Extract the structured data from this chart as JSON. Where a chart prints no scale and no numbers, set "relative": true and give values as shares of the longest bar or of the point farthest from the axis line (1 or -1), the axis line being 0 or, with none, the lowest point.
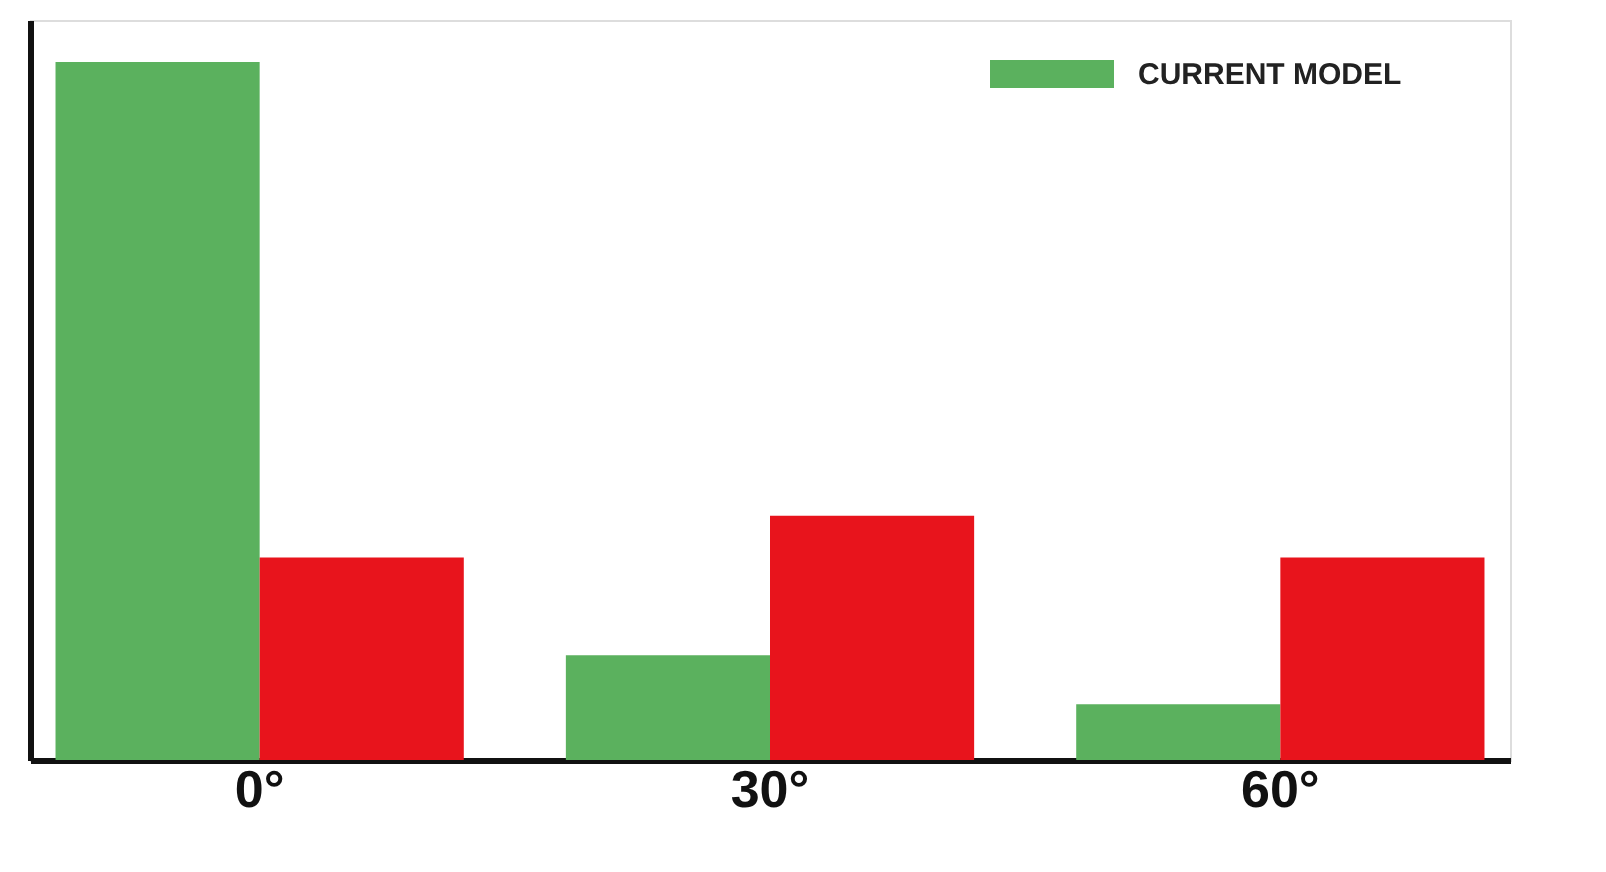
{
  "chart_data": {
    "type": "bar",
    "relative": true,
    "categories": [
      "0°",
      "30°",
      "60°"
    ],
    "series": [
      {
        "name": "CURRENT MODEL",
        "color": "#5bb15e",
        "values": [
          1,
          0.15,
          0.08
        ]
      },
      {
        "color": "#e8141c",
        "values": [
          0.29,
          0.35,
          0.29
        ]
      }
    ],
    "legend": "top right",
    "grid": false
  }
}
